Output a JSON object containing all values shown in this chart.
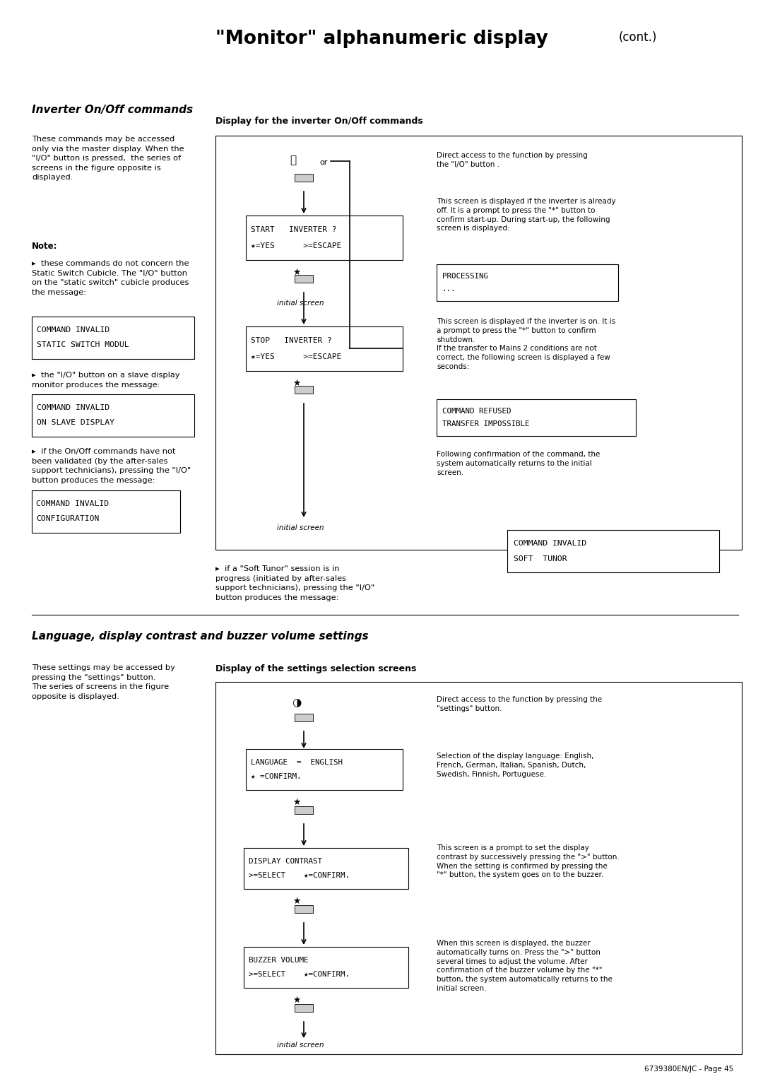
{
  "bg_color": "#ffffff",
  "title_bold": "\"Monitor\" alphanumeric display",
  "title_normal": "(cont.)",
  "section1_title": "Inverter On/Off commands",
  "section1_left_para": "These commands may be accessed\nonly via the master display. When the\n\"I/O\" button is pressed,  the series of\nscreens in the figure opposite is\ndisplayed.",
  "note_label": "Note:",
  "bullet1": "▸  these commands do not concern the\nStatic Switch Cubicle. The \"I/O\" button\non the \"static switch\" cubicle produces\nthe message:",
  "box1": [
    "COMMAND INVALID",
    "STATIC SWITCH MODUL"
  ],
  "bullet2": "▸  the \"I/O\" button on a slave display\nmonitor produces the message:",
  "box2": [
    "COMMAND INVALID",
    "ON SLAVE DISPLAY"
  ],
  "bullet3": "▸  if the On/Off commands have not\nbeen validated (by the after-sales\nsupport technicians), pressing the \"I/O\"\nbutton produces the message:",
  "box3": [
    "COMMAND INVALID",
    "CONFIGURATION"
  ],
  "diag1_title": "Display for the inverter On/Off commands",
  "diag1_start": [
    "START   INVERTER ?",
    "★=YES      >=ESCAPE"
  ],
  "diag1_stop": [
    "STOP   INVERTER ?",
    "★=YES      >=ESCAPE"
  ],
  "diag1_initial1": "initial screen",
  "diag1_initial2": "initial screen",
  "diag1_r1": "Direct access to the function by pressing\nthe \"I/O\" button .",
  "diag1_r2": "This screen is displayed if the inverter is already\noff. It is a prompt to press the \"*\" button to\nconfirm start-up. During start-up, the following\nscreen is displayed:",
  "processing": [
    "PROCESSING",
    "..."
  ],
  "diag1_r3": "This screen is displayed if the inverter is on. It is\na prompt to press the \"*\" button to confirm\nshutdown.\nIf the transfer to Mains 2 conditions are not\ncorrect, the following screen is displayed a few\nseconds:",
  "cmd_refused": [
    "COMMAND REFUSED",
    "TRANSFER IMPOSSIBLE"
  ],
  "diag1_r4": "Following confirmation of the command, the\nsystem automatically returns to the initial\nscreen.",
  "soft_tunor_bullet": "▸  if a \"Soft Tunor\" session is in\nprogress (initiated by after-sales\nsupport technicians), pressing the \"I/O\"\nbutton produces the message:",
  "box_soft": [
    "COMMAND INVALID",
    "SOFT  TUNOR"
  ],
  "section2_title": "Language, display contrast and buzzer volume settings",
  "section2_left": "These settings may be accessed by\npressing the \"settings\" button.\nThe series of screens in the figure\nopposite is displayed.",
  "diag2_title": "Display of the settings selection screens",
  "diag2_lang": [
    "LANGUAGE  =  ENGLISH",
    "★ =CONFIRM."
  ],
  "diag2_contrast": [
    "DISPLAY CONTRAST",
    ">=SELECT    ★=CONFIRM."
  ],
  "diag2_buzzer": [
    "BUZZER VOLUME",
    ">=SELECT    ★=CONFIRM."
  ],
  "diag2_initial": "initial screen",
  "diag2_r1": "Direct access to the function by pressing the\n\"settings\" button.",
  "diag2_r2": "Selection of the display language: English,\nFrench, German, Italian, Spanish, Dutch,\nSwedish, Finnish, Portuguese.",
  "diag2_r3": "This screen is a prompt to set the display\ncontrast by successively pressing the \">\" button.\nWhen the setting is confirmed by pressing the\n\"*\" button, the system goes on to the buzzer.",
  "diag2_r4": "When this screen is displayed, the buzzer\nautomatically turns on. Press the \">\" button\nseveral times to adjust the volume. After\nconfirmation of the buzzer volume by the \"*\"\nbutton, the system automatically returns to the\ninitial screen.",
  "footer": "6739380EN/JC - Page 45"
}
